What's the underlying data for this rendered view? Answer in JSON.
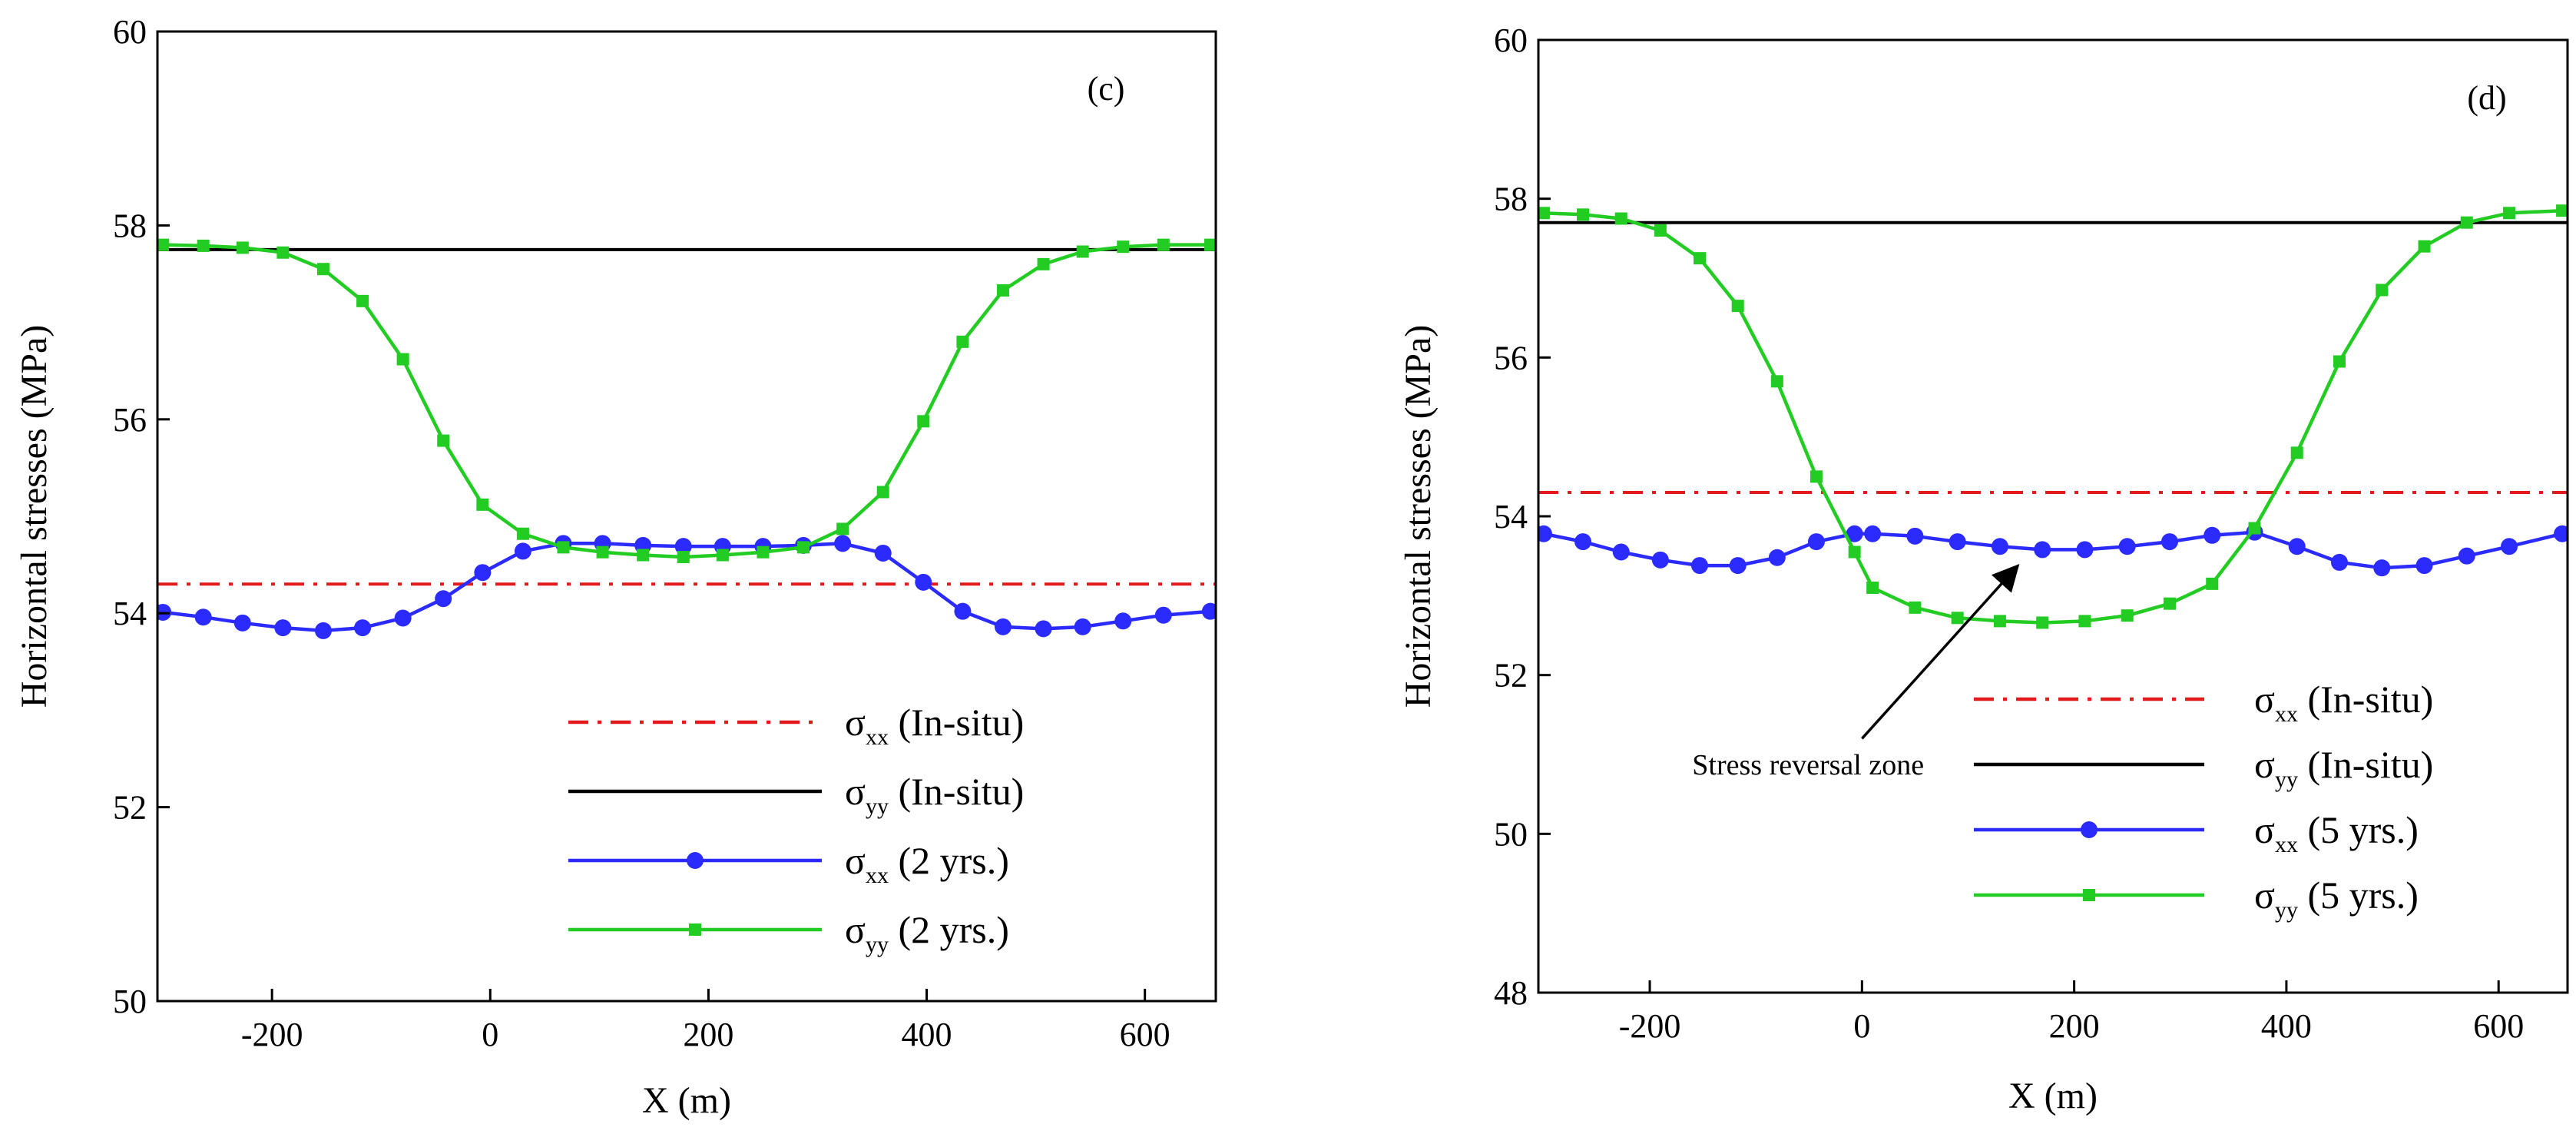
{
  "chart_data": [
    {
      "type": "line",
      "panel_label": "(c)",
      "xlabel": "X (m)",
      "ylabel": "Horizontal stresses (MPa)",
      "xlim": [
        -305,
        665
      ],
      "ylim": [
        50,
        60
      ],
      "xticks": [
        -200,
        0,
        200,
        400,
        600
      ],
      "yticks": [
        50,
        52,
        54,
        56,
        58,
        60
      ],
      "series": [
        {
          "name": "σxx (In-situ)",
          "sym": "σ",
          "sub": "xx",
          "suffix": " (In-situ)",
          "color": "#e31a1c",
          "dash": "26,12,5,12",
          "marker": "none",
          "x": [
            -305,
            665
          ],
          "y": [
            54.3,
            54.3
          ]
        },
        {
          "name": "σyy (In-situ)",
          "sym": "σ",
          "sub": "yy",
          "suffix": " (In-situ)",
          "color": "#000000",
          "dash": "",
          "marker": "none",
          "x": [
            -305,
            665
          ],
          "y": [
            57.75,
            57.75
          ]
        },
        {
          "name": "σxx (2 yrs.)",
          "sym": "σ",
          "sub": "xx",
          "suffix": " (2 yrs.)",
          "color": "#2b2bff",
          "dash": "",
          "marker": "circle",
          "x": [
            -300,
            -263,
            -227,
            -190,
            -153,
            -117,
            -80,
            -43,
            -7,
            30,
            67,
            103,
            140,
            177,
            213,
            250,
            287,
            323,
            360,
            397,
            433,
            470,
            507,
            543,
            580,
            617,
            660
          ],
          "y": [
            54.01,
            53.96,
            53.9,
            53.85,
            53.82,
            53.85,
            53.95,
            54.15,
            54.42,
            54.64,
            54.72,
            54.72,
            54.7,
            54.69,
            54.69,
            54.69,
            54.7,
            54.72,
            54.62,
            54.32,
            54.02,
            53.86,
            53.84,
            53.86,
            53.92,
            53.98,
            54.02
          ]
        },
        {
          "name": "σyy (2 yrs.)",
          "sym": "σ",
          "sub": "yy",
          "suffix": " (2 yrs.)",
          "color": "#22cc22",
          "dash": "",
          "marker": "square",
          "x": [
            -300,
            -263,
            -227,
            -190,
            -153,
            -117,
            -80,
            -43,
            -7,
            30,
            67,
            103,
            140,
            177,
            213,
            250,
            287,
            323,
            360,
            397,
            433,
            470,
            507,
            543,
            580,
            617,
            660
          ],
          "y": [
            57.8,
            57.79,
            57.77,
            57.72,
            57.55,
            57.22,
            56.62,
            55.78,
            55.12,
            54.82,
            54.68,
            54.63,
            54.6,
            54.58,
            54.6,
            54.63,
            54.68,
            54.87,
            55.25,
            55.98,
            56.8,
            57.33,
            57.6,
            57.73,
            57.78,
            57.8,
            57.8
          ]
        }
      ]
    },
    {
      "type": "line",
      "panel_label": "(d)",
      "xlabel": "X (m)",
      "ylabel": "Horizontal stresses (MPa)",
      "xlim": [
        -305,
        665
      ],
      "ylim": [
        48,
        60
      ],
      "xticks": [
        -200,
        0,
        200,
        400,
        600
      ],
      "yticks": [
        48,
        50,
        52,
        54,
        56,
        58,
        60
      ],
      "annotation": {
        "text": "Stress reversal zone",
        "text_at": [
          -160,
          50.75
        ],
        "arrow_from": [
          0,
          51.2
        ],
        "arrow_to": [
          145,
          53.35
        ]
      },
      "series": [
        {
          "name": "σxx (In-situ)",
          "sym": "σ",
          "sub": "xx",
          "suffix": " (In-situ)",
          "color": "#e31a1c",
          "dash": "26,12,5,12",
          "marker": "none",
          "x": [
            -305,
            665
          ],
          "y": [
            54.3,
            54.3
          ]
        },
        {
          "name": "σyy (In-situ)",
          "sym": "σ",
          "sub": "yy",
          "suffix": " (In-situ)",
          "color": "#000000",
          "dash": "",
          "marker": "none",
          "x": [
            -305,
            665
          ],
          "y": [
            57.7,
            57.7
          ]
        },
        {
          "name": "σxx (5 yrs.)",
          "sym": "σ",
          "sub": "xx",
          "suffix": " (5 yrs.)",
          "color": "#2b2bff",
          "dash": "",
          "marker": "circle",
          "x": [
            -300,
            -263,
            -227,
            -190,
            -153,
            -117,
            -80,
            -43,
            -7,
            10,
            50,
            90,
            130,
            170,
            210,
            250,
            290,
            330,
            370,
            410,
            450,
            490,
            530,
            570,
            610,
            660
          ],
          "y": [
            53.78,
            53.68,
            53.55,
            53.45,
            53.38,
            53.38,
            53.48,
            53.68,
            53.78,
            53.78,
            53.75,
            53.68,
            53.62,
            53.58,
            53.58,
            53.62,
            53.68,
            53.76,
            53.8,
            53.62,
            53.42,
            53.35,
            53.38,
            53.5,
            53.62,
            53.78
          ]
        },
        {
          "name": "σyy (5 yrs.)",
          "sym": "σ",
          "sub": "yy",
          "suffix": " (5 yrs.)",
          "color": "#22cc22",
          "dash": "",
          "marker": "square",
          "x": [
            -300,
            -263,
            -227,
            -190,
            -153,
            -117,
            -80,
            -43,
            -7,
            10,
            50,
            90,
            130,
            170,
            210,
            250,
            290,
            330,
            370,
            410,
            450,
            490,
            530,
            570,
            610,
            660
          ],
          "y": [
            57.82,
            57.8,
            57.75,
            57.6,
            57.25,
            56.65,
            55.7,
            54.5,
            53.55,
            53.1,
            52.85,
            52.72,
            52.68,
            52.66,
            52.68,
            52.75,
            52.9,
            53.15,
            53.85,
            54.8,
            55.95,
            56.85,
            57.4,
            57.7,
            57.82,
            57.85
          ]
        }
      ]
    }
  ]
}
